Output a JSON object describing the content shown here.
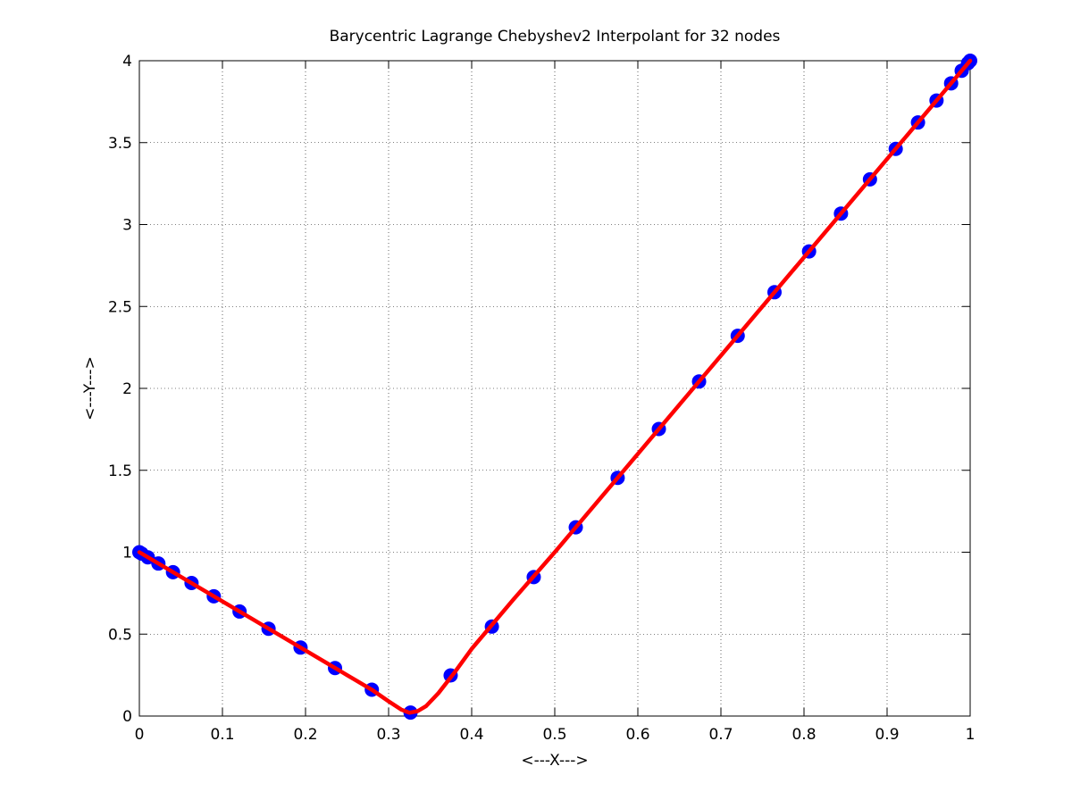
{
  "chart_data": {
    "type": "line",
    "title": "Barycentric Lagrange Chebyshev2 Interpolant for 32 nodes",
    "x_label": "<---X--->",
    "y_label": "<---Y--->",
    "xlim": [
      0,
      1
    ],
    "ylim": [
      0,
      4
    ],
    "xticks": [
      0,
      0.1,
      0.2,
      0.3,
      0.4,
      0.5,
      0.6,
      0.7,
      0.8,
      0.9,
      1
    ],
    "yticks": [
      0,
      0.5,
      1,
      1.5,
      2,
      2.5,
      3,
      3.5,
      4
    ],
    "grid": true,
    "series": [
      {
        "color": "#0000ff",
        "style": "markers",
        "x": [
          0,
          0.0026,
          0.0102,
          0.0229,
          0.0405,
          0.0628,
          0.0896,
          0.1206,
          0.1555,
          0.194,
          0.2355,
          0.2798,
          0.3264,
          0.3747,
          0.4243,
          0.4747,
          0.5253,
          0.5757,
          0.6253,
          0.6737,
          0.7202,
          0.7645,
          0.8061,
          0.8445,
          0.8794,
          0.9104,
          0.9372,
          0.9595,
          0.9771,
          0.9898,
          0.9974,
          1
        ],
        "values": [
          1,
          0.992,
          0.969,
          0.931,
          0.878,
          0.812,
          0.731,
          0.638,
          0.533,
          0.418,
          0.293,
          0.161,
          0.021,
          0.248,
          0.546,
          0.848,
          1.152,
          1.454,
          1.752,
          2.042,
          2.321,
          2.587,
          2.836,
          3.067,
          3.276,
          3.462,
          3.623,
          3.757,
          3.862,
          3.939,
          3.985,
          4
        ]
      },
      {
        "color": "#ff0000",
        "style": "line",
        "x": [
          0,
          0.05,
          0.1,
          0.15,
          0.2,
          0.25,
          0.28,
          0.3,
          0.315,
          0.325,
          0.335,
          0.345,
          0.36,
          0.38,
          0.4,
          0.45,
          0.5,
          0.6,
          0.7,
          0.8,
          0.9,
          0.95,
          1
        ],
        "values": [
          1,
          0.85,
          0.7,
          0.55,
          0.4,
          0.25,
          0.16,
          0.09,
          0.04,
          0.02,
          0.03,
          0.06,
          0.14,
          0.27,
          0.41,
          0.71,
          1.0,
          1.6,
          2.2,
          2.8,
          3.4,
          3.7,
          4
        ]
      }
    ]
  }
}
